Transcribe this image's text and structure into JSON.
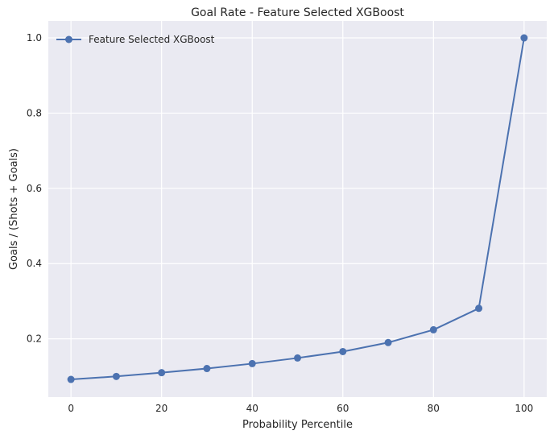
{
  "chart_data": {
    "type": "line",
    "title": "Goal Rate - Feature Selected XGBoost",
    "xlabel": "Probability Percentile",
    "ylabel": "Goals / (Shots + Goals)",
    "xlim": [
      -5,
      105
    ],
    "ylim": [
      0.045,
      1.045
    ],
    "xticks": [
      0,
      20,
      40,
      60,
      80,
      100
    ],
    "yticks": [
      0.2,
      0.4,
      0.6,
      0.8,
      1.0
    ],
    "ytick_labels": [
      "0.2",
      "0.4",
      "0.6",
      "0.8",
      "1.0"
    ],
    "grid": true,
    "legend_position": "top-left",
    "colors": {
      "series": "#4c72b0",
      "plot_bg": "#eaeaf2",
      "grid": "#ffffff"
    },
    "series": [
      {
        "name": "Feature Selected XGBoost",
        "x": [
          0,
          10,
          20,
          30,
          40,
          50,
          60,
          70,
          80,
          90,
          100
        ],
        "y": [
          0.092,
          0.1,
          0.11,
          0.121,
          0.134,
          0.149,
          0.166,
          0.19,
          0.224,
          0.281,
          1.0
        ]
      }
    ]
  }
}
